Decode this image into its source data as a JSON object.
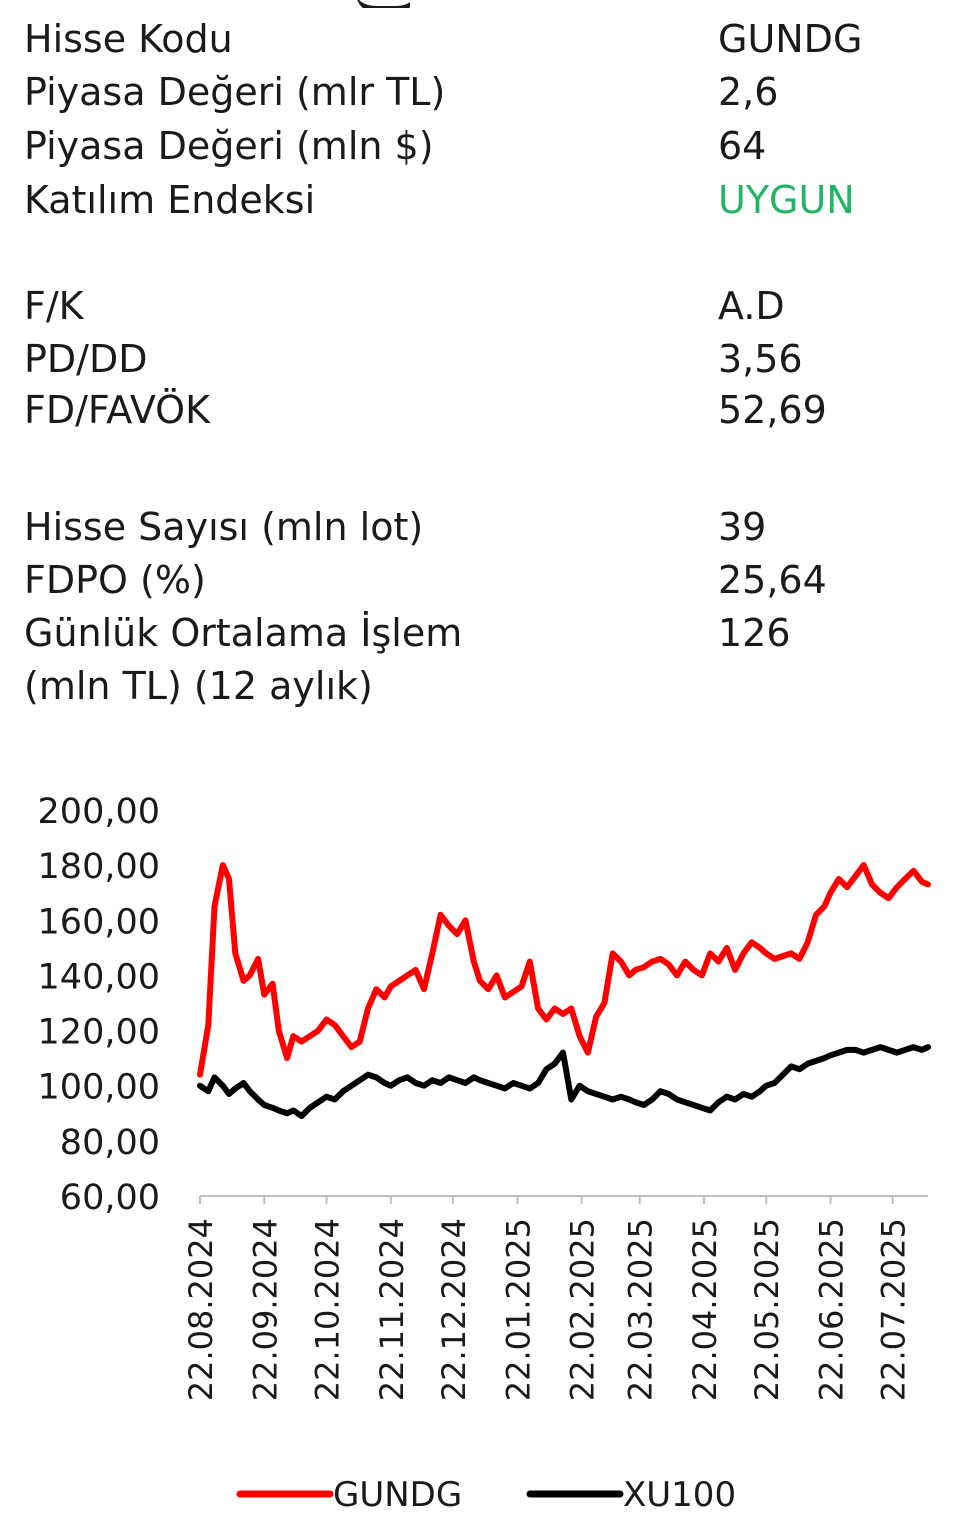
{
  "stats": [
    {
      "label": "Hisse Kodu",
      "value": "GUNDG"
    },
    {
      "label": "Piyasa Değeri (mlr TL)",
      "value": "2,6"
    },
    {
      "label": "Piyasa Değeri (mln $)",
      "value": "64"
    },
    {
      "label": "Katılım Endeksi",
      "value": "UYGUN",
      "value_color": "#22b566"
    },
    {
      "label": "F/K",
      "value": "A.D"
    },
    {
      "label": "PD/DD",
      "value": "3,56"
    },
    {
      "label": "FD/FAVÖK",
      "value": "52,69"
    },
    {
      "label": "Hisse Sayısı (mln lot)",
      "value": "39"
    },
    {
      "label": "FDPO (%)",
      "value": "25,64"
    },
    {
      "label": "Günlük Ortalama İşlem",
      "label_line2": "(mln TL) (12 aylık)",
      "value": "126"
    }
  ],
  "chart_data": {
    "type": "line",
    "title": "",
    "xlabel": "",
    "ylabel": "",
    "ylim": [
      60,
      200
    ],
    "yticks": [
      "60,00",
      "80,00",
      "100,00",
      "120,00",
      "140,00",
      "160,00",
      "180,00",
      "200,00"
    ],
    "xticks": [
      "22.08.2024",
      "22.09.2024",
      "22.10.2024",
      "22.11.2024",
      "22.12.2024",
      "22.01.2025",
      "22.02.2025",
      "22.03.2025",
      "22.04.2025",
      "22.05.2025",
      "22.06.2025",
      "22.07.2025"
    ],
    "grid": false,
    "legend_position": "bottom",
    "series": [
      {
        "name": "GUNDG",
        "color": "#ff0000",
        "x": [
          "2024-08-22",
          "2024-08-26",
          "2024-08-29",
          "2024-09-02",
          "2024-09-05",
          "2024-09-08",
          "2024-09-12",
          "2024-09-15",
          "2024-09-19",
          "2024-09-22",
          "2024-09-26",
          "2024-09-29",
          "2024-10-03",
          "2024-10-06",
          "2024-10-10",
          "2024-10-14",
          "2024-10-18",
          "2024-10-22",
          "2024-10-26",
          "2024-10-30",
          "2024-11-03",
          "2024-11-07",
          "2024-11-11",
          "2024-11-15",
          "2024-11-19",
          "2024-11-22",
          "2024-11-26",
          "2024-11-30",
          "2024-12-04",
          "2024-12-08",
          "2024-12-12",
          "2024-12-16",
          "2024-12-20",
          "2024-12-24",
          "2024-12-28",
          "2025-01-01",
          "2025-01-04",
          "2025-01-08",
          "2025-01-12",
          "2025-01-16",
          "2025-01-20",
          "2025-01-24",
          "2025-01-28",
          "2025-02-01",
          "2025-02-05",
          "2025-02-09",
          "2025-02-13",
          "2025-02-17",
          "2025-02-21",
          "2025-02-25",
          "2025-03-01",
          "2025-03-05",
          "2025-03-09",
          "2025-03-13",
          "2025-03-17",
          "2025-03-20",
          "2025-03-24",
          "2025-03-28",
          "2025-04-01",
          "2025-04-05",
          "2025-04-09",
          "2025-04-13",
          "2025-04-17",
          "2025-04-21",
          "2025-04-25",
          "2025-04-29",
          "2025-05-03",
          "2025-05-07",
          "2025-05-11",
          "2025-05-15",
          "2025-05-19",
          "2025-05-22",
          "2025-05-26",
          "2025-05-30",
          "2025-06-03",
          "2025-06-07",
          "2025-06-11",
          "2025-06-15",
          "2025-06-19",
          "2025-06-22",
          "2025-06-26",
          "2025-06-30",
          "2025-07-04",
          "2025-07-08",
          "2025-07-12",
          "2025-07-16",
          "2025-07-20",
          "2025-07-24",
          "2025-07-28",
          "2025-08-01",
          "2025-08-05",
          "2025-08-08"
        ],
        "values": [
          104,
          122,
          165,
          180,
          175,
          148,
          138,
          140,
          146,
          133,
          137,
          120,
          110,
          118,
          116,
          118,
          120,
          124,
          122,
          118,
          114,
          116,
          128,
          135,
          132,
          136,
          138,
          140,
          142,
          135,
          148,
          162,
          158,
          155,
          160,
          145,
          138,
          135,
          140,
          132,
          134,
          136,
          145,
          128,
          124,
          128,
          126,
          128,
          118,
          112,
          125,
          130,
          148,
          145,
          140,
          142,
          143,
          145,
          146,
          144,
          140,
          145,
          142,
          140,
          148,
          145,
          150,
          142,
          148,
          152,
          150,
          148,
          146,
          147,
          148,
          146,
          152,
          162,
          165,
          170,
          175,
          172,
          176,
          180,
          173,
          170,
          168,
          172,
          175,
          178,
          174,
          173
        ]
      },
      {
        "name": "XU100",
        "color": "#000000",
        "x": [
          "2024-08-22",
          "2024-08-26",
          "2024-08-29",
          "2024-09-02",
          "2024-09-05",
          "2024-09-08",
          "2024-09-12",
          "2024-09-15",
          "2024-09-19",
          "2024-09-22",
          "2024-09-26",
          "2024-09-29",
          "2024-10-03",
          "2024-10-06",
          "2024-10-10",
          "2024-10-14",
          "2024-10-18",
          "2024-10-22",
          "2024-10-26",
          "2024-10-30",
          "2024-11-03",
          "2024-11-07",
          "2024-11-11",
          "2024-11-15",
          "2024-11-19",
          "2024-11-22",
          "2024-11-26",
          "2024-11-30",
          "2024-12-04",
          "2024-12-08",
          "2024-12-12",
          "2024-12-16",
          "2024-12-20",
          "2024-12-24",
          "2024-12-28",
          "2025-01-01",
          "2025-01-04",
          "2025-01-08",
          "2025-01-12",
          "2025-01-16",
          "2025-01-20",
          "2025-01-24",
          "2025-01-28",
          "2025-02-01",
          "2025-02-05",
          "2025-02-09",
          "2025-02-13",
          "2025-02-17",
          "2025-02-21",
          "2025-02-25",
          "2025-03-01",
          "2025-03-05",
          "2025-03-09",
          "2025-03-13",
          "2025-03-17",
          "2025-03-20",
          "2025-03-24",
          "2025-03-28",
          "2025-04-01",
          "2025-04-05",
          "2025-04-09",
          "2025-04-13",
          "2025-04-17",
          "2025-04-21",
          "2025-04-25",
          "2025-04-29",
          "2025-05-03",
          "2025-05-07",
          "2025-05-11",
          "2025-05-15",
          "2025-05-19",
          "2025-05-22",
          "2025-05-26",
          "2025-05-30",
          "2025-06-03",
          "2025-06-07",
          "2025-06-11",
          "2025-06-15",
          "2025-06-19",
          "2025-06-22",
          "2025-06-26",
          "2025-06-30",
          "2025-07-04",
          "2025-07-08",
          "2025-07-12",
          "2025-07-16",
          "2025-07-20",
          "2025-07-24",
          "2025-07-28",
          "2025-08-01",
          "2025-08-05",
          "2025-08-08"
        ],
        "values": [
          100,
          98,
          103,
          100,
          97,
          99,
          101,
          98,
          95,
          93,
          92,
          91,
          90,
          91,
          89,
          92,
          94,
          96,
          95,
          98,
          100,
          102,
          104,
          103,
          101,
          100,
          102,
          103,
          101,
          100,
          102,
          101,
          103,
          102,
          101,
          103,
          102,
          101,
          100,
          99,
          101,
          100,
          99,
          101,
          106,
          108,
          112,
          95,
          100,
          98,
          97,
          96,
          95,
          96,
          95,
          94,
          93,
          95,
          98,
          97,
          95,
          94,
          93,
          92,
          91,
          94,
          96,
          95,
          97,
          96,
          98,
          100,
          101,
          104,
          107,
          106,
          108,
          109,
          110,
          111,
          112,
          113,
          113,
          112,
          113,
          114,
          113,
          112,
          113,
          114,
          113,
          114
        ]
      }
    ]
  }
}
